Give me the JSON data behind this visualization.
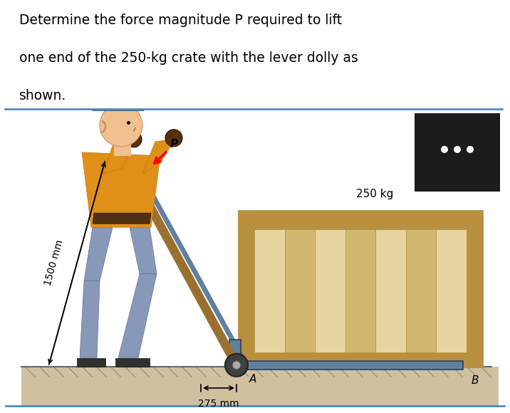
{
  "title_lines": [
    "Determine the force magnitude P required to lift",
    "one end of the 250-kg crate with the lever dolly as",
    "shown."
  ],
  "title_fontsize": 13.5,
  "bg_color": "#ffffff",
  "dark_box_color": "#1c1c1c",
  "dark_box_dots_color": "#ffffff",
  "ground_color": "#cfc0a0",
  "ground_line_color": "#666666",
  "crate_main_color": "#dfc48a",
  "crate_frame_color": "#b89040",
  "crate_plank_light": "#e8d4a0",
  "crate_plank_dark": "#d0b870",
  "dolly_blue": "#6080a0",
  "dolly_handle_color": "#9a7030",
  "dolly_wheel_color": "#404040",
  "person_skin": "#f0c090",
  "person_shirt": "#e09018",
  "person_pants": "#8898b8",
  "person_shoe": "#303030",
  "person_hat": "#5888a8",
  "person_glove": "#5a3010",
  "belt_color": "#503010",
  "sep_line_color": "#4080c0",
  "label_250kg": "250 kg",
  "label_1500mm": "1500 mm",
  "label_275mm": "275 mm",
  "label_A": "A",
  "label_B": "B",
  "label_P": "P",
  "figure_width": 7.16,
  "figure_height": 5.8
}
